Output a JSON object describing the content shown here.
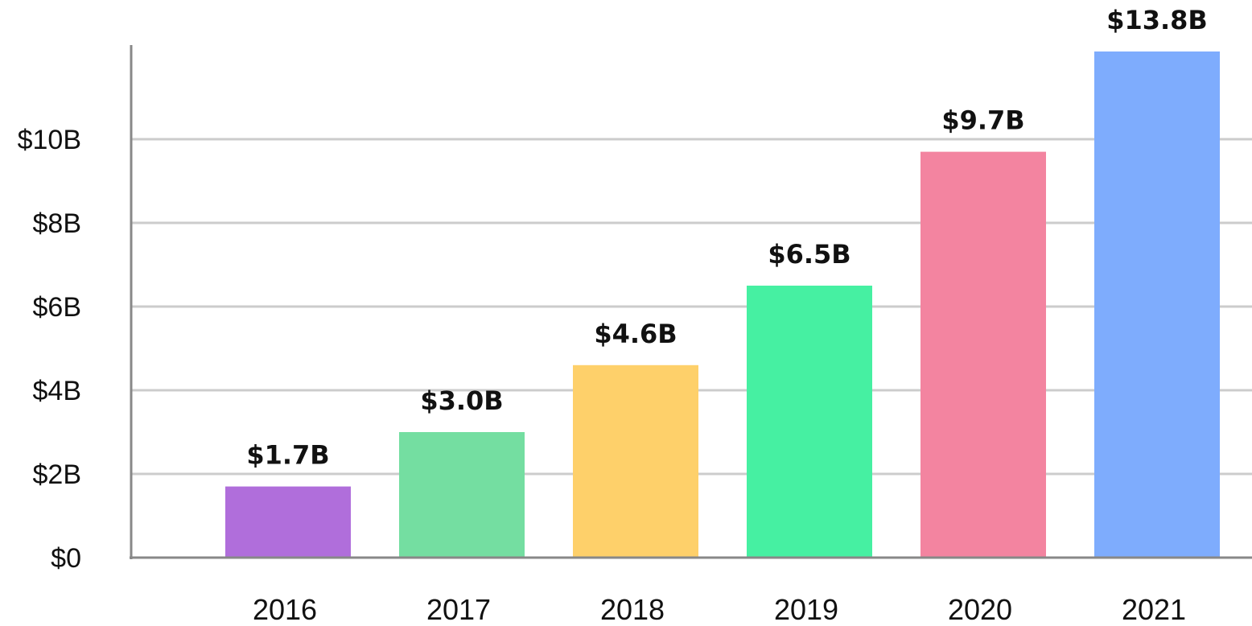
{
  "chart_data": {
    "type": "bar",
    "title": "",
    "xlabel": "",
    "ylabel": "",
    "categories": [
      "2016",
      "2017",
      "2018",
      "2019",
      "2020",
      "2021"
    ],
    "values": [
      1.7,
      3.0,
      4.6,
      6.5,
      9.7,
      13.8
    ],
    "value_labels": [
      "$1.7B",
      "$3.0B",
      "$4.6B",
      "$6.5B",
      "$9.7B",
      "$13.8B"
    ],
    "bar_colors": [
      "#b06edb",
      "#74dea1",
      "#fed06a",
      "#46f0a2",
      "#f384a0",
      "#7eacfd"
    ],
    "ylim": [
      0,
      12
    ],
    "y_ticks": [
      {
        "value": 0,
        "label": "$0"
      },
      {
        "value": 2,
        "label": "$2B"
      },
      {
        "value": 4,
        "label": "$4B"
      },
      {
        "value": 6,
        "label": "$6B"
      },
      {
        "value": 8,
        "label": "$8B"
      },
      {
        "value": 10,
        "label": "$10B"
      }
    ],
    "grid": true,
    "legend": "none",
    "gridline_color": "#cccccc",
    "axis_color": "#888888"
  }
}
